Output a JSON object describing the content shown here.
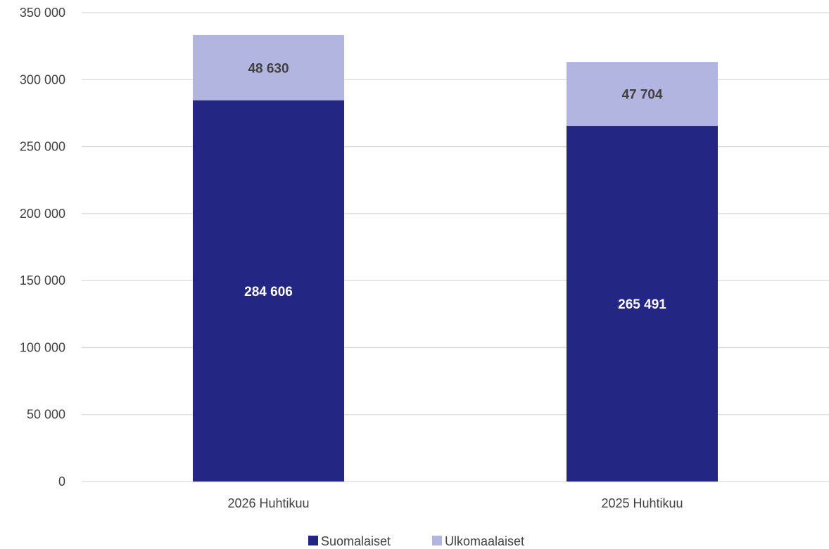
{
  "chart_data": {
    "type": "bar",
    "stacked": true,
    "categories": [
      "2026 Huhtikuu",
      "2025 Huhtikuu"
    ],
    "series": [
      {
        "name": "Suomalaiset",
        "values": [
          284606,
          265491
        ],
        "labels": [
          "284 606",
          "265 491"
        ],
        "color": "#232783",
        "label_color": "#ffffff"
      },
      {
        "name": "Ulkomaalaiset",
        "values": [
          48630,
          47704
        ],
        "labels": [
          "48 630",
          "47 704"
        ],
        "color": "#b3b5e1",
        "label_color": "#404040"
      }
    ],
    "ylim": [
      0,
      350000
    ],
    "yticks": [
      0,
      50000,
      100000,
      150000,
      200000,
      250000,
      300000,
      350000
    ],
    "ytick_labels": [
      "0",
      "50 000",
      "100 000",
      "150 000",
      "200 000",
      "250 000",
      "300 000",
      "350 000"
    ],
    "grid": true,
    "legend": "bottom",
    "title": "",
    "xlabel": "",
    "ylabel": ""
  }
}
